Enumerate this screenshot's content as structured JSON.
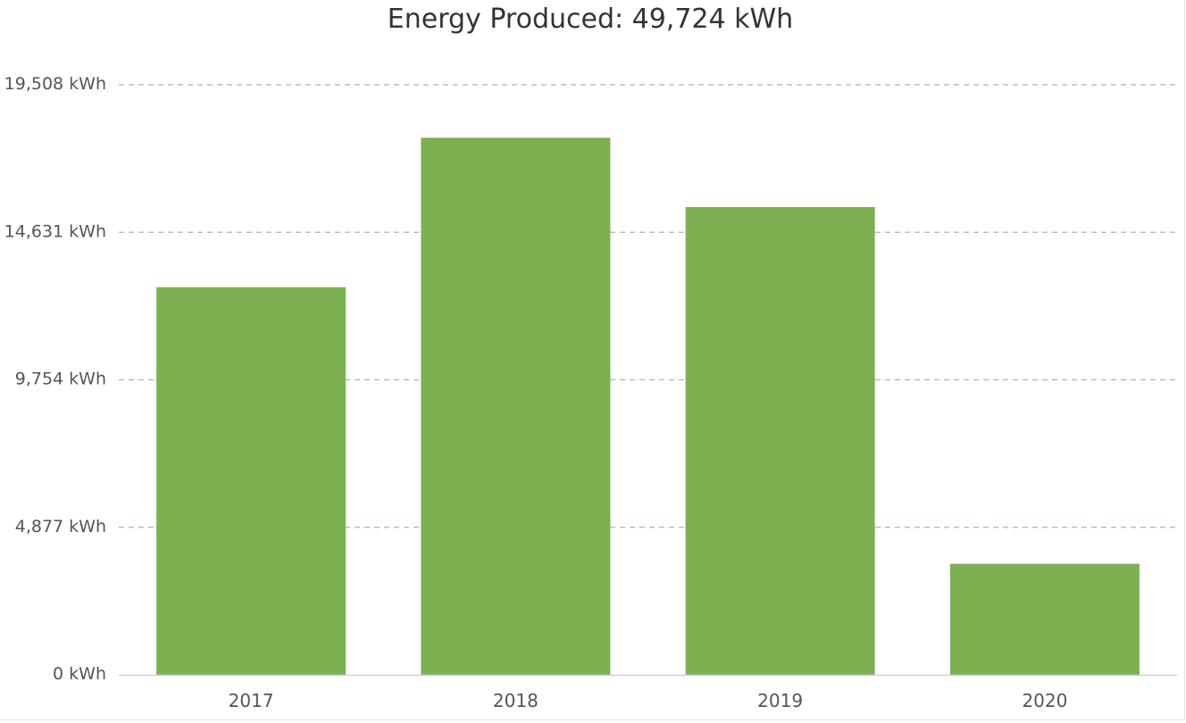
{
  "chart_data": {
    "type": "bar",
    "title": "Energy Produced: 49,724 kWh",
    "xlabel": "",
    "ylabel": "",
    "categories": [
      "2017",
      "2018",
      "2019",
      "2020"
    ],
    "values": [
      12816,
      17757,
      15465,
      3671
    ],
    "unit": "kWh",
    "ylim": [
      0,
      19508
    ],
    "yticks": [
      0,
      4877,
      9754,
      14631,
      19508
    ],
    "ytick_labels": [
      "0 kWh",
      "4,877 kWh",
      "9,754 kWh",
      "14,631 kWh",
      "19,508 kWh"
    ],
    "grid": true,
    "grid_style": "dashed",
    "legend": "none",
    "colors": {
      "bar": "#7cb051",
      "grid": "#9ab8c9",
      "axis": "#c8d3e0",
      "text": "#555555",
      "title": "#333333"
    }
  }
}
